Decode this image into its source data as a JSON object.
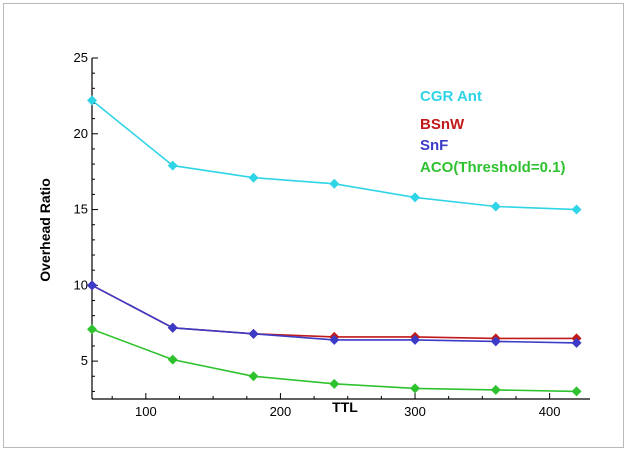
{
  "chart_data": {
    "type": "line",
    "xlabel": "TTL",
    "ylabel": "Overhead Ratio",
    "xlim": [
      60,
      430
    ],
    "ylim": [
      2.5,
      25
    ],
    "x_ticks": [
      100,
      200,
      300,
      400
    ],
    "y_ticks": [
      5,
      10,
      15,
      20,
      25
    ],
    "x": [
      60,
      120,
      180,
      240,
      300,
      360,
      420
    ],
    "grid": false,
    "legend_position": "top-right",
    "series": [
      {
        "name": "CGR Ant",
        "color": "#2fd4e6",
        "values": [
          22.2,
          17.9,
          17.1,
          16.7,
          15.8,
          15.2,
          15.0
        ]
      },
      {
        "name": "BSnW",
        "color": "#c11a1a",
        "values": [
          10.0,
          7.2,
          6.8,
          6.6,
          6.6,
          6.5,
          6.5
        ]
      },
      {
        "name": "SnF",
        "color": "#3b3bc8",
        "values": [
          10.0,
          7.2,
          6.8,
          6.4,
          6.4,
          6.3,
          6.2
        ]
      },
      {
        "name": "ACO(Threshold=0.1)",
        "color": "#2ec22e",
        "values": [
          7.1,
          5.1,
          4.0,
          3.5,
          3.2,
          3.1,
          3.0
        ]
      }
    ]
  }
}
